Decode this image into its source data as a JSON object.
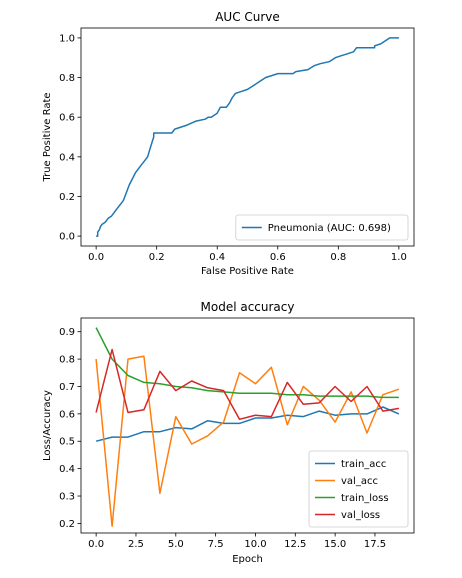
{
  "chart_data": [
    {
      "type": "line",
      "title": "AUC Curve",
      "xlabel": "False Positive Rate",
      "ylabel": "True Positive Rate",
      "xlim": [
        -0.05,
        1.05
      ],
      "ylim": [
        -0.05,
        1.05
      ],
      "xticks": [
        0.0,
        0.2,
        0.4,
        0.6,
        0.8,
        1.0
      ],
      "xtick_labels": [
        "0.0",
        "0.2",
        "0.4",
        "0.6",
        "0.8",
        "1.0"
      ],
      "yticks": [
        0.0,
        0.2,
        0.4,
        0.6,
        0.8,
        1.0
      ],
      "ytick_labels": [
        "0.0",
        "0.2",
        "0.4",
        "0.6",
        "0.8",
        "1.0"
      ],
      "grid": false,
      "legend_position": "lower-right",
      "series": [
        {
          "name": "Pneumonia (AUC: 0.698)",
          "color": "#1f77b4",
          "points": [
            [
              0.0,
              0.0
            ],
            [
              0.005,
              0.0
            ],
            [
              0.005,
              0.02
            ],
            [
              0.01,
              0.03
            ],
            [
              0.015,
              0.05
            ],
            [
              0.02,
              0.06
            ],
            [
              0.03,
              0.07
            ],
            [
              0.04,
              0.09
            ],
            [
              0.05,
              0.1
            ],
            [
              0.06,
              0.12
            ],
            [
              0.07,
              0.14
            ],
            [
              0.08,
              0.16
            ],
            [
              0.09,
              0.18
            ],
            [
              0.1,
              0.22
            ],
            [
              0.11,
              0.26
            ],
            [
              0.12,
              0.29
            ],
            [
              0.13,
              0.32
            ],
            [
              0.14,
              0.34
            ],
            [
              0.15,
              0.36
            ],
            [
              0.16,
              0.38
            ],
            [
              0.17,
              0.4
            ],
            [
              0.18,
              0.45
            ],
            [
              0.19,
              0.5
            ],
            [
              0.19,
              0.52
            ],
            [
              0.25,
              0.52
            ],
            [
              0.26,
              0.54
            ],
            [
              0.28,
              0.55
            ],
            [
              0.3,
              0.56
            ],
            [
              0.33,
              0.58
            ],
            [
              0.36,
              0.59
            ],
            [
              0.37,
              0.6
            ],
            [
              0.38,
              0.6
            ],
            [
              0.39,
              0.61
            ],
            [
              0.4,
              0.62
            ],
            [
              0.41,
              0.65
            ],
            [
              0.43,
              0.65
            ],
            [
              0.44,
              0.67
            ],
            [
              0.45,
              0.7
            ],
            [
              0.46,
              0.72
            ],
            [
              0.48,
              0.73
            ],
            [
              0.5,
              0.74
            ],
            [
              0.52,
              0.76
            ],
            [
              0.54,
              0.78
            ],
            [
              0.56,
              0.8
            ],
            [
              0.58,
              0.81
            ],
            [
              0.6,
              0.82
            ],
            [
              0.65,
              0.82
            ],
            [
              0.66,
              0.83
            ],
            [
              0.7,
              0.84
            ],
            [
              0.72,
              0.86
            ],
            [
              0.74,
              0.87
            ],
            [
              0.77,
              0.88
            ],
            [
              0.79,
              0.9
            ],
            [
              0.81,
              0.91
            ],
            [
              0.83,
              0.92
            ],
            [
              0.85,
              0.93
            ],
            [
              0.86,
              0.95
            ],
            [
              0.92,
              0.95
            ],
            [
              0.92,
              0.96
            ],
            [
              0.94,
              0.97
            ],
            [
              0.96,
              0.99
            ],
            [
              0.97,
              1.0
            ],
            [
              1.0,
              1.0
            ]
          ]
        }
      ]
    },
    {
      "type": "line",
      "title": "Model accuracy",
      "xlabel": "Epoch",
      "ylabel": "Loss/Accuracy",
      "xlim": [
        -0.95,
        19.95
      ],
      "ylim": [
        0.165,
        0.95
      ],
      "xticks": [
        0.0,
        2.5,
        5.0,
        7.5,
        10.0,
        12.5,
        15.0,
        17.5
      ],
      "xtick_labels": [
        "0.0",
        "2.5",
        "5.0",
        "7.5",
        "10.0",
        "12.5",
        "15.0",
        "17.5"
      ],
      "yticks": [
        0.2,
        0.3,
        0.4,
        0.5,
        0.6,
        0.7,
        0.8,
        0.9
      ],
      "ytick_labels": [
        "0.2",
        "0.3",
        "0.4",
        "0.5",
        "0.6",
        "0.7",
        "0.8",
        "0.9"
      ],
      "grid": false,
      "legend_position": "lower-right",
      "x": [
        0,
        1,
        2,
        3,
        4,
        5,
        6,
        7,
        8,
        9,
        10,
        11,
        12,
        13,
        14,
        15,
        16,
        17,
        18,
        19
      ],
      "series": [
        {
          "name": "train_acc",
          "color": "#1f77b4",
          "values": [
            0.5,
            0.515,
            0.515,
            0.535,
            0.535,
            0.55,
            0.545,
            0.575,
            0.565,
            0.565,
            0.585,
            0.585,
            0.595,
            0.59,
            0.61,
            0.595,
            0.6,
            0.6,
            0.625,
            0.6
          ]
        },
        {
          "name": "val_acc",
          "color": "#ff7f0e",
          "values": [
            0.8,
            0.19,
            0.8,
            0.81,
            0.31,
            0.59,
            0.49,
            0.52,
            0.57,
            0.75,
            0.71,
            0.77,
            0.56,
            0.7,
            0.65,
            0.57,
            0.68,
            0.53,
            0.67,
            0.69
          ]
        },
        {
          "name": "train_loss",
          "color": "#2ca02c",
          "values": [
            0.915,
            0.8,
            0.74,
            0.715,
            0.71,
            0.7,
            0.695,
            0.685,
            0.68,
            0.675,
            0.675,
            0.675,
            0.67,
            0.67,
            0.665,
            0.665,
            0.665,
            0.665,
            0.66,
            0.66
          ]
        },
        {
          "name": "val_loss",
          "color": "#d62728",
          "values": [
            0.605,
            0.835,
            0.605,
            0.615,
            0.755,
            0.685,
            0.72,
            0.695,
            0.685,
            0.58,
            0.595,
            0.59,
            0.715,
            0.635,
            0.64,
            0.7,
            0.645,
            0.7,
            0.61,
            0.62
          ]
        }
      ]
    }
  ]
}
